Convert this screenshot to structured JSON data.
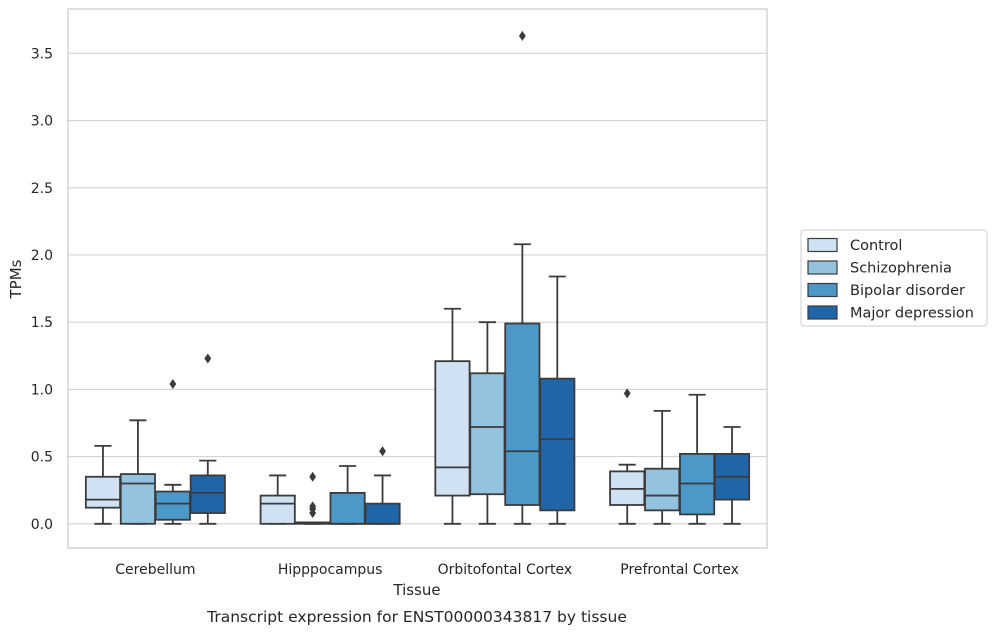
{
  "chart_data": {
    "type": "box",
    "title": "",
    "caption": "Transcript expression for ENST00000343817 by tissue",
    "xlabel": "Tissue",
    "ylabel": "TPMs",
    "ylim": [
      -0.18,
      3.83
    ],
    "yticks": [
      "0.0",
      "0.5",
      "1.0",
      "1.5",
      "2.0",
      "2.5",
      "3.0",
      "3.5"
    ],
    "grid": "horizontal",
    "legend_position": "right",
    "categories": [
      "Cerebellum",
      "Hipppocampus",
      "Orbitofontal Cortex",
      "Prefrontal Cortex"
    ],
    "series": [
      {
        "name": "Control",
        "color": "#cfe1f2",
        "boxes": [
          {
            "whislo": 0.0,
            "q1": 0.12,
            "med": 0.18,
            "q3": 0.35,
            "whishi": 0.58,
            "fliers": []
          },
          {
            "whislo": 0.0,
            "q1": 0.0,
            "med": 0.15,
            "q3": 0.21,
            "whishi": 0.36,
            "fliers": []
          },
          {
            "whislo": 0.0,
            "q1": 0.21,
            "med": 0.42,
            "q3": 1.21,
            "whishi": 1.6,
            "fliers": []
          },
          {
            "whislo": 0.0,
            "q1": 0.14,
            "med": 0.26,
            "q3": 0.39,
            "whishi": 0.44,
            "fliers": [
              0.97
            ]
          }
        ]
      },
      {
        "name": "Schizophrenia",
        "color": "#93c3df",
        "boxes": [
          {
            "whislo": 0.0,
            "q1": 0.0,
            "med": 0.3,
            "q3": 0.37,
            "whishi": 0.77,
            "fliers": []
          },
          {
            "whislo": 0.0,
            "q1": 0.0,
            "med": 0.01,
            "q3": 0.01,
            "whishi": 0.01,
            "fliers": [
              0.35,
              0.13,
              0.11,
              0.08
            ]
          },
          {
            "whislo": 0.0,
            "q1": 0.22,
            "med": 0.72,
            "q3": 1.12,
            "whishi": 1.5,
            "fliers": []
          },
          {
            "whislo": 0.0,
            "q1": 0.1,
            "med": 0.21,
            "q3": 0.41,
            "whishi": 0.84,
            "fliers": []
          }
        ]
      },
      {
        "name": "Bipolar disorder",
        "color": "#4b98c9",
        "boxes": [
          {
            "whislo": 0.0,
            "q1": 0.03,
            "med": 0.15,
            "q3": 0.24,
            "whishi": 0.29,
            "fliers": [
              1.04
            ]
          },
          {
            "whislo": 0.0,
            "q1": 0.0,
            "med": 0.0,
            "q3": 0.23,
            "whishi": 0.43,
            "fliers": []
          },
          {
            "whislo": 0.0,
            "q1": 0.14,
            "med": 0.54,
            "q3": 1.49,
            "whishi": 2.08,
            "fliers": [
              3.63
            ]
          },
          {
            "whislo": 0.0,
            "q1": 0.07,
            "med": 0.3,
            "q3": 0.52,
            "whishi": 0.96,
            "fliers": []
          }
        ]
      },
      {
        "name": "Major depression",
        "color": "#1f65a8",
        "boxes": [
          {
            "whislo": 0.0,
            "q1": 0.08,
            "med": 0.23,
            "q3": 0.36,
            "whishi": 0.47,
            "fliers": [
              1.23
            ]
          },
          {
            "whislo": 0.0,
            "q1": 0.0,
            "med": 0.0,
            "q3": 0.15,
            "whishi": 0.36,
            "fliers": [
              0.54
            ]
          },
          {
            "whislo": 0.0,
            "q1": 0.1,
            "med": 0.63,
            "q3": 1.08,
            "whishi": 1.84,
            "fliers": []
          },
          {
            "whislo": 0.0,
            "q1": 0.18,
            "med": 0.35,
            "q3": 0.52,
            "whishi": 0.72,
            "fliers": []
          }
        ]
      }
    ]
  }
}
